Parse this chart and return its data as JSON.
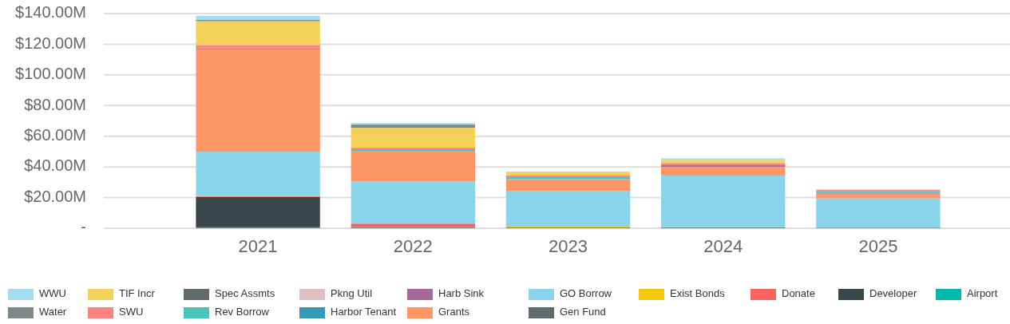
{
  "chart_data": {
    "type": "bar",
    "stacked": true,
    "categories": [
      "2021",
      "2022",
      "2023",
      "2024",
      "2025"
    ],
    "series": [
      {
        "name": "Airport",
        "color": "#01b8aa",
        "values": [
          0.6,
          0.8,
          0.5,
          0.6,
          0.4
        ]
      },
      {
        "name": "Developer",
        "color": "#374649",
        "values": [
          19.8,
          0,
          0,
          0,
          0
        ]
      },
      {
        "name": "Donate",
        "color": "#fd625e",
        "values": [
          0.5,
          2.2,
          0,
          0,
          0
        ]
      },
      {
        "name": "Exist Bonds",
        "color": "#f2c80f",
        "values": [
          0,
          0,
          1,
          0,
          0
        ]
      },
      {
        "name": "Gen Fund",
        "color": "#5f6b6d",
        "values": [
          0,
          0,
          0,
          0,
          0
        ]
      },
      {
        "name": "GO Borrow",
        "color": "#8ad4eb",
        "values": [
          29,
          27.6,
          22.9,
          33.8,
          19.1
        ]
      },
      {
        "name": "Grants",
        "color": "#fe9666",
        "values": [
          66.8,
          19.5,
          7.6,
          5.7,
          3.1
        ]
      },
      {
        "name": "Harb Sink",
        "color": "#a66999",
        "values": [
          0.5,
          0,
          0,
          1,
          0.5
        ]
      },
      {
        "name": "Harbor Tenant",
        "color": "#3599b8",
        "values": [
          0,
          0,
          0,
          0,
          0
        ]
      },
      {
        "name": "Pkng Util",
        "color": "#dfbfbf",
        "values": [
          0,
          0,
          0,
          0,
          0
        ]
      },
      {
        "name": "Rev Borrow",
        "color": "#4ac5bb",
        "values": [
          0,
          1.4,
          1.7,
          0,
          1.2
        ]
      },
      {
        "name": "Spec Assmts",
        "color": "#5f6b6d",
        "values": [
          0,
          0,
          0,
          0,
          0
        ]
      },
      {
        "name": "SWU",
        "color": "#fb8281",
        "values": [
          2.3,
          1,
          0.9,
          1.4,
          0.8
        ]
      },
      {
        "name": "TIF Incr",
        "color": "#f4d25a",
        "values": [
          15.6,
          13,
          2.3,
          2.1,
          0
        ]
      },
      {
        "name": "Water",
        "color": "#7f898a",
        "values": [
          0.9,
          2.1,
          0,
          0,
          0
        ]
      },
      {
        "name": "WWU",
        "color": "#a4ddee",
        "values": [
          2.6,
          1,
          null,
          1,
          null
        ]
      }
    ],
    "ylim": [
      0,
      140
    ],
    "yticks": [
      {
        "value": 0,
        "label": "-"
      },
      {
        "value": 20,
        "label": "$20.00M"
      },
      {
        "value": 40,
        "label": "$40.00M"
      },
      {
        "value": 60,
        "label": "$60.00M"
      },
      {
        "value": 80,
        "label": "$80.00M"
      },
      {
        "value": 100,
        "label": "$100.00M"
      },
      {
        "value": 120,
        "label": "$120.00M"
      },
      {
        "value": 140,
        "label": "$140.00M"
      }
    ],
    "grid": "y",
    "legend": "bottom"
  }
}
